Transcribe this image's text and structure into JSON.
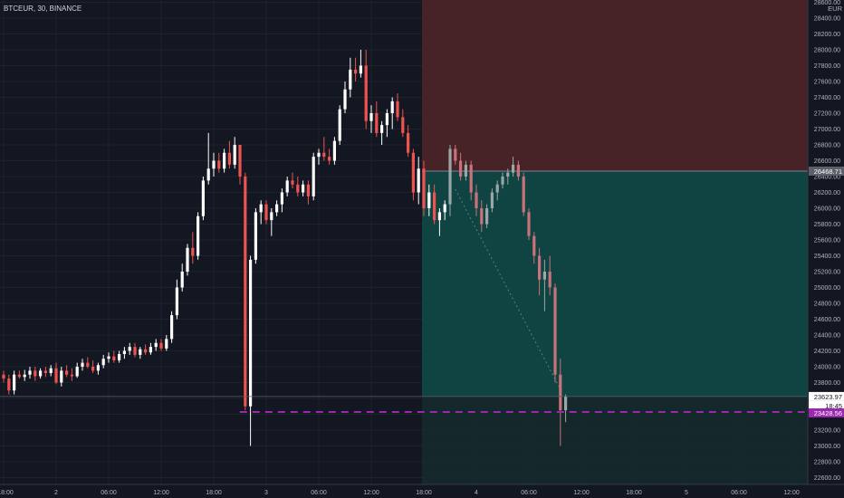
{
  "header": {
    "title": "BTCEUR, 30, BINANCE"
  },
  "price_axis": {
    "currency": "EUR",
    "ticks": [
      "28600.00",
      "28400.00",
      "28200.00",
      "28000.00",
      "27800.00",
      "27600.00",
      "27400.00",
      "27200.00",
      "27000.00",
      "26800.00",
      "26600.00",
      "26400.00",
      "26200.00",
      "26000.00",
      "25800.00",
      "25600.00",
      "25400.00",
      "25200.00",
      "25000.00",
      "24800.00",
      "24600.00",
      "24400.00",
      "24200.00",
      "24000.00",
      "23800.00",
      "23600.00",
      "23400.00",
      "23200.00",
      "23000.00",
      "22800.00",
      "22600.00"
    ]
  },
  "time_axis": {
    "ticks": [
      "18:00",
      "2",
      "06:00",
      "12:00",
      "18:00",
      "3",
      "06:00",
      "12:00",
      "18:00",
      "4",
      "06:00",
      "12:00",
      "18:00",
      "5",
      "06:00",
      "12:00"
    ]
  },
  "price_tags": {
    "entry": "26468.71",
    "last": "23623.97",
    "countdown": "18:45",
    "level": "23428.56"
  },
  "colors": {
    "background": "#131722",
    "up": "#ffffff",
    "down": "#ef5350",
    "stop_zone": "#4a2328",
    "target_zone": "#0f4745",
    "level_line": "#9c27b0"
  },
  "chart_data": {
    "type": "candlestick",
    "symbol": "BTCEUR",
    "interval": "30",
    "exchange": "BINANCE",
    "ylim": [
      22500,
      28650
    ],
    "y_ticks": [
      22600,
      22800,
      23000,
      23200,
      23400,
      23600,
      23800,
      24000,
      24200,
      24400,
      24600,
      24800,
      25000,
      25200,
      25400,
      25600,
      25800,
      26000,
      26200,
      26400,
      26600,
      26800,
      27000,
      27200,
      27400,
      27600,
      27800,
      28000,
      28200,
      28400,
      28600
    ],
    "x_tick_bars": [
      0,
      10,
      20,
      30,
      40,
      50,
      60,
      70,
      80,
      90,
      100,
      110,
      120,
      130,
      140,
      150
    ],
    "position": {
      "type": "short",
      "entry": 26468.71,
      "stop_top": 28650,
      "target": 23623.97,
      "start_bar": 80,
      "end_bar": 158
    },
    "level_line": 23428.56,
    "level_start_bar": 46,
    "last_price": 23623.97,
    "candles": [
      [
        23900,
        23950,
        23800,
        23850
      ],
      [
        23850,
        23900,
        23650,
        23700
      ],
      [
        23700,
        23950,
        23650,
        23900
      ],
      [
        23900,
        23950,
        23850,
        23870
      ],
      [
        23870,
        23960,
        23820,
        23900
      ],
      [
        23900,
        24000,
        23850,
        23950
      ],
      [
        23950,
        24000,
        23820,
        23880
      ],
      [
        23880,
        23980,
        23850,
        23950
      ],
      [
        23950,
        24000,
        23870,
        23920
      ],
      [
        23920,
        24020,
        23880,
        23980
      ],
      [
        23980,
        24050,
        23780,
        23800
      ],
      [
        23800,
        24000,
        23750,
        23950
      ],
      [
        23950,
        24020,
        23870,
        23900
      ],
      [
        23900,
        23980,
        23820,
        23880
      ],
      [
        23880,
        24050,
        23860,
        24000
      ],
      [
        24000,
        24100,
        23950,
        24050
      ],
      [
        24050,
        24120,
        23980,
        24000
      ],
      [
        24000,
        24080,
        23920,
        23950
      ],
      [
        23950,
        24050,
        23900,
        24020
      ],
      [
        24020,
        24150,
        23980,
        24100
      ],
      [
        24100,
        24180,
        24050,
        24130
      ],
      [
        24130,
        24200,
        24050,
        24080
      ],
      [
        24080,
        24200,
        24050,
        24160
      ],
      [
        24160,
        24250,
        24100,
        24200
      ],
      [
        24200,
        24300,
        24150,
        24250
      ],
      [
        24250,
        24300,
        24120,
        24150
      ],
      [
        24150,
        24250,
        24100,
        24220
      ],
      [
        24220,
        24280,
        24150,
        24180
      ],
      [
        24180,
        24300,
        24150,
        24250
      ],
      [
        24250,
        24350,
        24200,
        24300
      ],
      [
        24300,
        24350,
        24200,
        24230
      ],
      [
        24230,
        24400,
        24200,
        24350
      ],
      [
        24350,
        24700,
        24300,
        24650
      ],
      [
        24650,
        25100,
        24600,
        25000
      ],
      [
        25000,
        25300,
        24950,
        25200
      ],
      [
        25200,
        25550,
        25150,
        25500
      ],
      [
        25500,
        25700,
        25300,
        25400
      ],
      [
        25400,
        25950,
        25350,
        25900
      ],
      [
        25900,
        26400,
        25850,
        26350
      ],
      [
        26350,
        26950,
        26300,
        26500
      ],
      [
        26500,
        26700,
        26400,
        26600
      ],
      [
        26600,
        26700,
        26450,
        26500
      ],
      [
        26500,
        26750,
        26450,
        26700
      ],
      [
        26700,
        26850,
        26500,
        26550
      ],
      [
        26550,
        26900,
        26500,
        26800
      ],
      [
        26800,
        26800,
        26300,
        26400
      ],
      [
        26400,
        26450,
        23450,
        23500
      ],
      [
        23500,
        25400,
        23000,
        25350
      ],
      [
        25350,
        26000,
        25300,
        25950
      ],
      [
        25950,
        26100,
        25800,
        26050
      ],
      [
        26050,
        26100,
        25800,
        25850
      ],
      [
        25850,
        26000,
        25650,
        25950
      ],
      [
        25950,
        26100,
        25900,
        26050
      ],
      [
        26050,
        26250,
        25950,
        26200
      ],
      [
        26200,
        26400,
        26150,
        26350
      ],
      [
        26350,
        26450,
        26250,
        26300
      ],
      [
        26300,
        26400,
        26150,
        26200
      ],
      [
        26200,
        26350,
        26150,
        26300
      ],
      [
        26300,
        26350,
        26050,
        26150
      ],
      [
        26150,
        26700,
        26100,
        26650
      ],
      [
        26650,
        26750,
        26550,
        26700
      ],
      [
        26700,
        26900,
        26600,
        26650
      ],
      [
        26650,
        26750,
        26550,
        26600
      ],
      [
        26600,
        26900,
        26550,
        26850
      ],
      [
        26850,
        27300,
        26800,
        27250
      ],
      [
        27250,
        27600,
        27200,
        27500
      ],
      [
        27500,
        27900,
        27400,
        27750
      ],
      [
        27750,
        27900,
        27600,
        27700
      ],
      [
        27700,
        28000,
        27650,
        27800
      ],
      [
        27800,
        28000,
        27000,
        27100
      ],
      [
        27100,
        27300,
        26950,
        27200
      ],
      [
        27200,
        27350,
        26900,
        26950
      ],
      [
        26950,
        27100,
        26800,
        27050
      ],
      [
        27050,
        27250,
        26900,
        27200
      ],
      [
        27200,
        27400,
        27000,
        27350
      ],
      [
        27350,
        27450,
        27100,
        27150
      ],
      [
        27150,
        27250,
        26900,
        26950
      ],
      [
        26950,
        27050,
        26650,
        26700
      ],
      [
        26700,
        26750,
        26100,
        26200
      ],
      [
        26200,
        26650,
        26050,
        26500
      ],
      [
        26500,
        26600,
        25900,
        26000
      ],
      [
        26000,
        26300,
        25900,
        26200
      ],
      [
        26200,
        26300,
        25800,
        25850
      ],
      [
        25850,
        26000,
        25650,
        25950
      ],
      [
        25950,
        26100,
        25850,
        26050
      ],
      [
        26050,
        26800,
        25900,
        26750
      ],
      [
        26750,
        26800,
        26550,
        26600
      ],
      [
        26600,
        26700,
        26350,
        26400
      ],
      [
        26400,
        26600,
        26350,
        26550
      ],
      [
        26550,
        26600,
        26100,
        26200
      ],
      [
        26200,
        26300,
        25900,
        26000
      ],
      [
        26000,
        26100,
        25700,
        25800
      ],
      [
        25800,
        26050,
        25750,
        26000
      ],
      [
        26000,
        26250,
        25950,
        26200
      ],
      [
        26200,
        26350,
        26100,
        26300
      ],
      [
        26300,
        26450,
        26250,
        26400
      ],
      [
        26400,
        26500,
        26300,
        26450
      ],
      [
        26450,
        26650,
        26400,
        26550
      ],
      [
        26550,
        26600,
        26350,
        26400
      ],
      [
        26400,
        26450,
        25900,
        25950
      ],
      [
        25950,
        26000,
        25600,
        25650
      ],
      [
        25650,
        25700,
        25300,
        25400
      ],
      [
        25400,
        25500,
        24900,
        25100
      ],
      [
        25100,
        25350,
        24700,
        25200
      ],
      [
        25200,
        25400,
        24900,
        25000
      ],
      [
        25000,
        25050,
        23800,
        23900
      ],
      [
        23900,
        24100,
        23000,
        23450
      ],
      [
        23450,
        23650,
        23300,
        23624
      ]
    ]
  }
}
